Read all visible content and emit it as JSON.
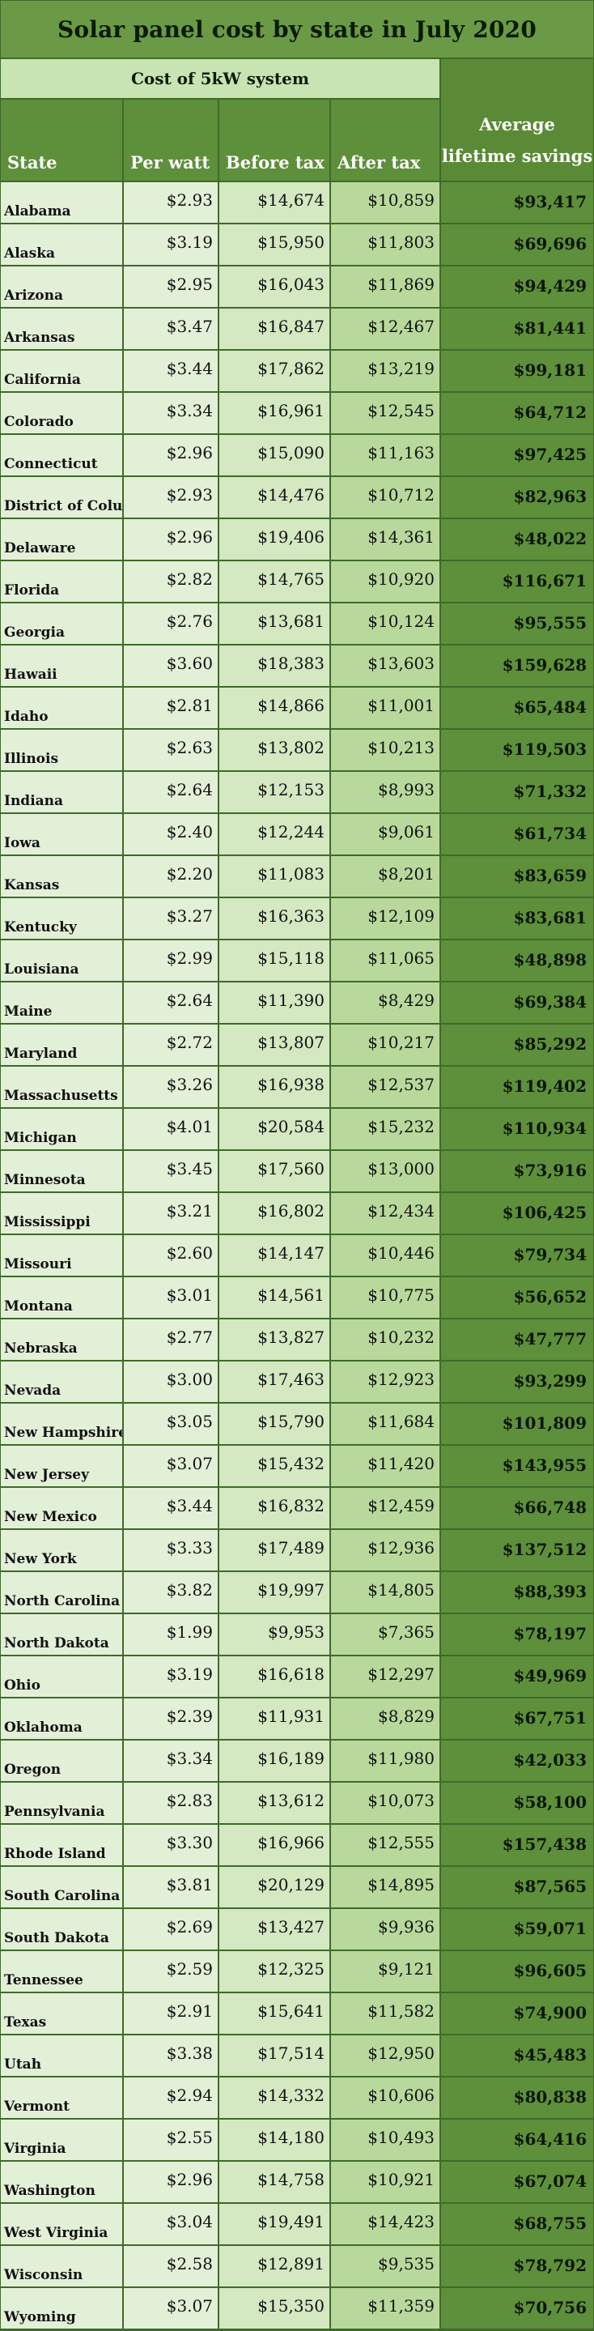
{
  "chart_data": {
    "type": "table",
    "title": "Solar panel cost by state in July 2020",
    "group_header": "Cost of 5kW system",
    "columns": [
      "State",
      "Per watt",
      "Before tax",
      "After tax"
    ],
    "savings_header_lines": [
      "Average",
      "lifetime savings"
    ],
    "rows": [
      {
        "state": "Alabama",
        "per_watt": "$2.93",
        "before_tax": "$14,674",
        "after_tax": "$10,859",
        "savings": "$93,417"
      },
      {
        "state": "Alaska",
        "per_watt": "$3.19",
        "before_tax": "$15,950",
        "after_tax": "$11,803",
        "savings": "$69,696"
      },
      {
        "state": "Arizona",
        "per_watt": "$2.95",
        "before_tax": "$16,043",
        "after_tax": "$11,869",
        "savings": "$94,429"
      },
      {
        "state": "Arkansas",
        "per_watt": "$3.47",
        "before_tax": "$16,847",
        "after_tax": "$12,467",
        "savings": "$81,441"
      },
      {
        "state": "California",
        "per_watt": "$3.44",
        "before_tax": "$17,862",
        "after_tax": "$13,219",
        "savings": "$99,181"
      },
      {
        "state": "Colorado",
        "per_watt": "$3.34",
        "before_tax": "$16,961",
        "after_tax": "$12,545",
        "savings": "$64,712"
      },
      {
        "state": "Connecticut",
        "per_watt": "$2.96",
        "before_tax": "$15,090",
        "after_tax": "$11,163",
        "savings": "$97,425"
      },
      {
        "state": "District of Colum",
        "per_watt": "$2.93",
        "before_tax": "$14,476",
        "after_tax": "$10,712",
        "savings": "$82,963"
      },
      {
        "state": "Delaware",
        "per_watt": "$2.96",
        "before_tax": "$19,406",
        "after_tax": "$14,361",
        "savings": "$48,022"
      },
      {
        "state": "Florida",
        "per_watt": "$2.82",
        "before_tax": "$14,765",
        "after_tax": "$10,920",
        "savings": "$116,671"
      },
      {
        "state": "Georgia",
        "per_watt": "$2.76",
        "before_tax": "$13,681",
        "after_tax": "$10,124",
        "savings": "$95,555"
      },
      {
        "state": "Hawaii",
        "per_watt": "$3.60",
        "before_tax": "$18,383",
        "after_tax": "$13,603",
        "savings": "$159,628"
      },
      {
        "state": "Idaho",
        "per_watt": "$2.81",
        "before_tax": "$14,866",
        "after_tax": "$11,001",
        "savings": "$65,484"
      },
      {
        "state": "Illinois",
        "per_watt": "$2.63",
        "before_tax": "$13,802",
        "after_tax": "$10,213",
        "savings": "$119,503"
      },
      {
        "state": "Indiana",
        "per_watt": "$2.64",
        "before_tax": "$12,153",
        "after_tax": "$8,993",
        "savings": "$71,332"
      },
      {
        "state": "Iowa",
        "per_watt": "$2.40",
        "before_tax": "$12,244",
        "after_tax": "$9,061",
        "savings": "$61,734"
      },
      {
        "state": "Kansas",
        "per_watt": "$2.20",
        "before_tax": "$11,083",
        "after_tax": "$8,201",
        "savings": "$83,659"
      },
      {
        "state": "Kentucky",
        "per_watt": "$3.27",
        "before_tax": "$16,363",
        "after_tax": "$12,109",
        "savings": "$83,681"
      },
      {
        "state": "Louisiana",
        "per_watt": "$2.99",
        "before_tax": "$15,118",
        "after_tax": "$11,065",
        "savings": "$48,898"
      },
      {
        "state": "Maine",
        "per_watt": "$2.64",
        "before_tax": "$11,390",
        "after_tax": "$8,429",
        "savings": "$69,384"
      },
      {
        "state": "Maryland",
        "per_watt": "$2.72",
        "before_tax": "$13,807",
        "after_tax": "$10,217",
        "savings": "$85,292"
      },
      {
        "state": "Massachusetts",
        "per_watt": "$3.26",
        "before_tax": "$16,938",
        "after_tax": "$12,537",
        "savings": "$119,402"
      },
      {
        "state": "Michigan",
        "per_watt": "$4.01",
        "before_tax": "$20,584",
        "after_tax": "$15,232",
        "savings": "$110,934"
      },
      {
        "state": "Minnesota",
        "per_watt": "$3.45",
        "before_tax": "$17,560",
        "after_tax": "$13,000",
        "savings": "$73,916"
      },
      {
        "state": "Mississippi",
        "per_watt": "$3.21",
        "before_tax": "$16,802",
        "after_tax": "$12,434",
        "savings": "$106,425"
      },
      {
        "state": "Missouri",
        "per_watt": "$2.60",
        "before_tax": "$14,147",
        "after_tax": "$10,446",
        "savings": "$79,734"
      },
      {
        "state": "Montana",
        "per_watt": "$3.01",
        "before_tax": "$14,561",
        "after_tax": "$10,775",
        "savings": "$56,652"
      },
      {
        "state": "Nebraska",
        "per_watt": "$2.77",
        "before_tax": "$13,827",
        "after_tax": "$10,232",
        "savings": "$47,777"
      },
      {
        "state": "Nevada",
        "per_watt": "$3.00",
        "before_tax": "$17,463",
        "after_tax": "$12,923",
        "savings": "$93,299"
      },
      {
        "state": "New Hampshire",
        "per_watt": "$3.05",
        "before_tax": "$15,790",
        "after_tax": "$11,684",
        "savings": "$101,809"
      },
      {
        "state": "New Jersey",
        "per_watt": "$3.07",
        "before_tax": "$15,432",
        "after_tax": "$11,420",
        "savings": "$143,955"
      },
      {
        "state": "New Mexico",
        "per_watt": "$3.44",
        "before_tax": "$16,832",
        "after_tax": "$12,459",
        "savings": "$66,748"
      },
      {
        "state": "New York",
        "per_watt": "$3.33",
        "before_tax": "$17,489",
        "after_tax": "$12,936",
        "savings": "$137,512"
      },
      {
        "state": "North Carolina",
        "per_watt": "$3.82",
        "before_tax": "$19,997",
        "after_tax": "$14,805",
        "savings": "$88,393"
      },
      {
        "state": "North Dakota",
        "per_watt": "$1.99",
        "before_tax": "$9,953",
        "after_tax": "$7,365",
        "savings": "$78,197"
      },
      {
        "state": "Ohio",
        "per_watt": "$3.19",
        "before_tax": "$16,618",
        "after_tax": "$12,297",
        "savings": "$49,969"
      },
      {
        "state": "Oklahoma",
        "per_watt": "$2.39",
        "before_tax": "$11,931",
        "after_tax": "$8,829",
        "savings": "$67,751"
      },
      {
        "state": "Oregon",
        "per_watt": "$3.34",
        "before_tax": "$16,189",
        "after_tax": "$11,980",
        "savings": "$42,033"
      },
      {
        "state": "Pennsylvania",
        "per_watt": "$2.83",
        "before_tax": "$13,612",
        "after_tax": "$10,073",
        "savings": "$58,100"
      },
      {
        "state": "Rhode Island",
        "per_watt": "$3.30",
        "before_tax": "$16,966",
        "after_tax": "$12,555",
        "savings": "$157,438"
      },
      {
        "state": "South Carolina",
        "per_watt": "$3.81",
        "before_tax": "$20,129",
        "after_tax": "$14,895",
        "savings": "$87,565"
      },
      {
        "state": "South Dakota",
        "per_watt": "$2.69",
        "before_tax": "$13,427",
        "after_tax": "$9,936",
        "savings": "$59,071"
      },
      {
        "state": "Tennessee",
        "per_watt": "$2.59",
        "before_tax": "$12,325",
        "after_tax": "$9,121",
        "savings": "$96,605"
      },
      {
        "state": "Texas",
        "per_watt": "$2.91",
        "before_tax": "$15,641",
        "after_tax": "$11,582",
        "savings": "$74,900"
      },
      {
        "state": "Utah",
        "per_watt": "$3.38",
        "before_tax": "$17,514",
        "after_tax": "$12,950",
        "savings": "$45,483"
      },
      {
        "state": "Vermont",
        "per_watt": "$2.94",
        "before_tax": "$14,332",
        "after_tax": "$10,606",
        "savings": "$80,838"
      },
      {
        "state": "Virginia",
        "per_watt": "$2.55",
        "before_tax": "$14,180",
        "after_tax": "$10,493",
        "savings": "$64,416"
      },
      {
        "state": "Washington",
        "per_watt": "$2.96",
        "before_tax": "$14,758",
        "after_tax": "$10,921",
        "savings": "$67,074"
      },
      {
        "state": "West Virginia",
        "per_watt": "$3.04",
        "before_tax": "$19,491",
        "after_tax": "$14,423",
        "savings": "$68,755"
      },
      {
        "state": "Wisconsin",
        "per_watt": "$2.58",
        "before_tax": "$12,891",
        "after_tax": "$9,535",
        "savings": "$78,792"
      },
      {
        "state": "Wyoming",
        "per_watt": "$3.07",
        "before_tax": "$15,350",
        "after_tax": "$11,359",
        "savings": "$70,756"
      }
    ]
  },
  "colors": {
    "title_bg": "#6a9a45",
    "header_green": "#5e8f3b",
    "cost_header_bg": "#c9e4b3",
    "state_cell": "#e3f0d8",
    "before_tax_cell": "#d4e8c2",
    "after_tax_cell": "#b9d99c",
    "savings_cell": "#5e8f3b",
    "grid_lines": "#3f6a2a"
  }
}
